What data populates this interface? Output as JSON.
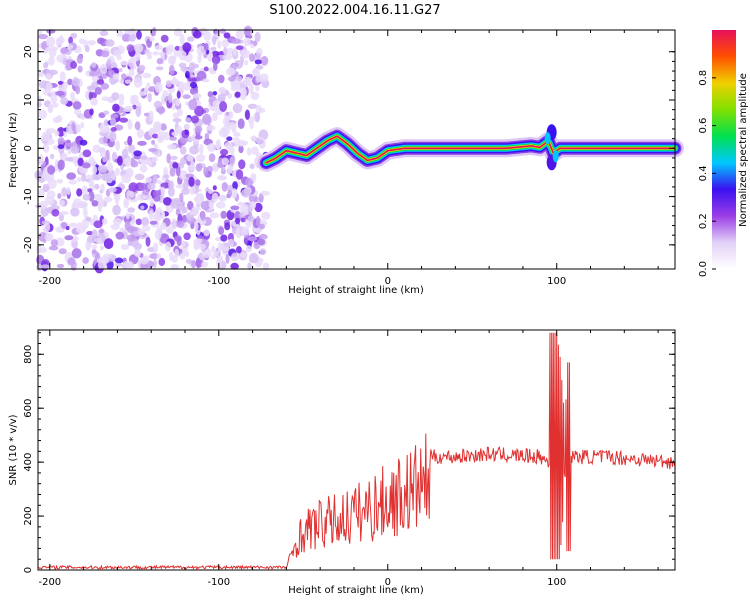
{
  "figure": {
    "title": "S100.2022.004.16.11.G27"
  },
  "chart_data": [
    {
      "type": "heatmap",
      "name": "spectrogram",
      "xlabel": "Height of straight line (km)",
      "ylabel": "Frequency (Hz)",
      "xlim": [
        -207,
        170
      ],
      "ylim": [
        -25,
        24.5
      ],
      "xticks": [
        -200,
        -100,
        0,
        100
      ],
      "yticks": [
        20,
        10,
        0,
        -10,
        -20
      ],
      "noise_region_x": [
        -207,
        -72
      ],
      "tone_start_x": -72,
      "tone_track": {
        "x": [
          -72,
          -66,
          -60,
          -54,
          -48,
          -42,
          -36,
          -30,
          -24,
          -18,
          -12,
          -6,
          0,
          10,
          30,
          50,
          70,
          85,
          90,
          95,
          98,
          102,
          110,
          130,
          150,
          170
        ],
        "y": [
          -3,
          -2,
          -0.5,
          -1,
          -1.5,
          0,
          1.5,
          2.5,
          1,
          -1,
          -2.5,
          -2,
          -0.5,
          0,
          0,
          0,
          0,
          0.5,
          0.2,
          1.5,
          -1,
          0,
          0,
          0,
          0,
          0
        ]
      },
      "colorbar": {
        "label": "Normalized spectral amplitude",
        "range": [
          0,
          1
        ],
        "ticks": [
          "0.0",
          "0.2",
          "0.4",
          "0.6",
          "0.8"
        ],
        "tick_values": [
          0,
          0.2,
          0.4,
          0.6,
          0.8
        ],
        "colors": [
          "#ffffff",
          "#e2d0f7",
          "#9a3ee6",
          "#3b10f0",
          "#00c8ff",
          "#00e050",
          "#80e000",
          "#f0d000",
          "#ff5000",
          "#e8105a"
        ]
      }
    },
    {
      "type": "line",
      "name": "snr",
      "xlabel": "Height of straight line (km)",
      "ylabel": "SNR (10 * v/v)",
      "xlim": [
        -207,
        170
      ],
      "ylim": [
        0,
        890
      ],
      "xticks": [
        -200,
        -100,
        0,
        100
      ],
      "yticks": [
        0,
        200,
        400,
        600,
        800
      ],
      "color": "#e03030",
      "envelope": {
        "x": [
          -207,
          -60,
          -53,
          -45,
          -30,
          -15,
          0,
          15,
          25,
          40,
          60,
          90,
          95,
          100,
          105,
          110,
          130,
          170
        ],
        "y": [
          10,
          10,
          150,
          200,
          230,
          270,
          320,
          370,
          420,
          420,
          430,
          420,
          400,
          450,
          420,
          420,
          420,
          400
        ]
      },
      "burst": {
        "x": [
          100,
          102,
          104,
          106
        ],
        "y": [
          880,
          790,
          620,
          70
        ]
      }
    }
  ]
}
